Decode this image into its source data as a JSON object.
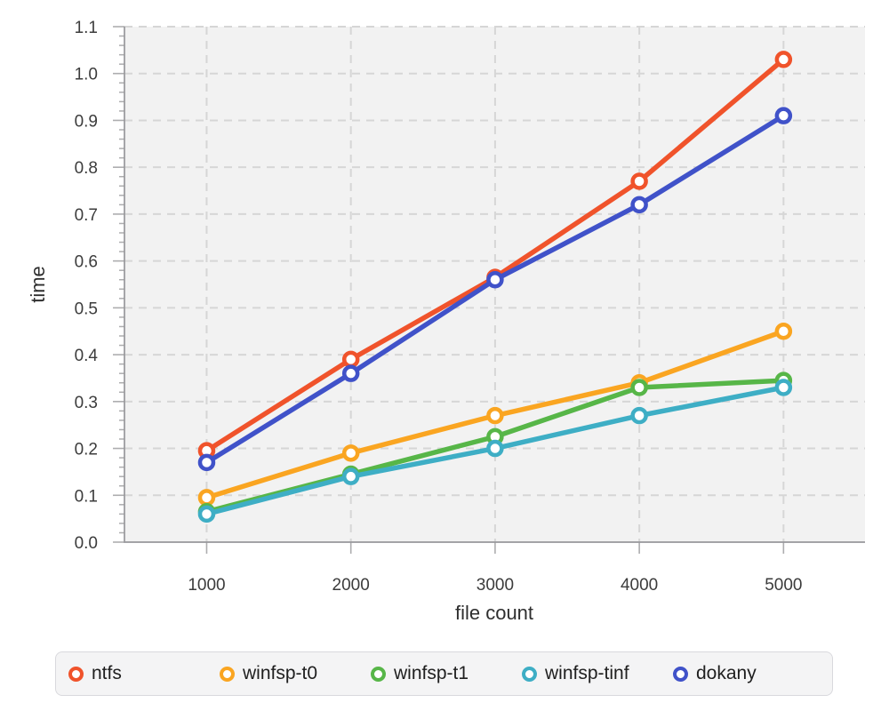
{
  "figure": {
    "type": "benchmark-line-chart"
  },
  "chart_data": {
    "type": "line",
    "title": "",
    "xlabel": "file count",
    "ylabel": "time",
    "x": [
      1000,
      2000,
      3000,
      4000,
      5000
    ],
    "x_tick_labels": [
      "1000",
      "2000",
      "3000",
      "4000",
      "5000"
    ],
    "y_tick_labels": [
      "0.0",
      "0.1",
      "0.2",
      "0.3",
      "0.4",
      "0.5",
      "0.6",
      "0.7",
      "0.8",
      "0.9",
      "1.0",
      "1.1"
    ],
    "xlim": [
      430,
      5565
    ],
    "ylim": [
      0.0,
      1.1
    ],
    "y_major_step": 0.1,
    "y_minor_step": 0.02,
    "grid": true,
    "grid_style": "dashed",
    "legend_position": "bottom",
    "series": [
      {
        "name": "ntfs",
        "color": "#F0532B",
        "values": [
          0.195,
          0.39,
          0.565,
          0.77,
          1.03
        ]
      },
      {
        "name": "winfsp-t0",
        "color": "#FAA521",
        "values": [
          0.095,
          0.19,
          0.27,
          0.34,
          0.45
        ]
      },
      {
        "name": "winfsp-t1",
        "color": "#57B648",
        "values": [
          0.065,
          0.145,
          0.225,
          0.33,
          0.345
        ]
      },
      {
        "name": "winfsp-tinf",
        "color": "#3EAEC5",
        "values": [
          0.06,
          0.14,
          0.2,
          0.27,
          0.33
        ]
      },
      {
        "name": "dokany",
        "color": "#4052C9",
        "values": [
          0.17,
          0.36,
          0.56,
          0.72,
          0.91
        ]
      }
    ],
    "style": {
      "plot_background": "#F2F2F2",
      "grid_color": "#D6D6D6",
      "axis_color": "#98989C",
      "tick_color": "#ADADAF",
      "tick_label_color": "#3C3C3C",
      "axis_title_color": "#2E2E2E",
      "marker_fill": "#FFFFFF",
      "legend_background": "#F4F4F5",
      "legend_border": "#D9D9DD",
      "legend_text_color": "#1F1F1F"
    }
  }
}
